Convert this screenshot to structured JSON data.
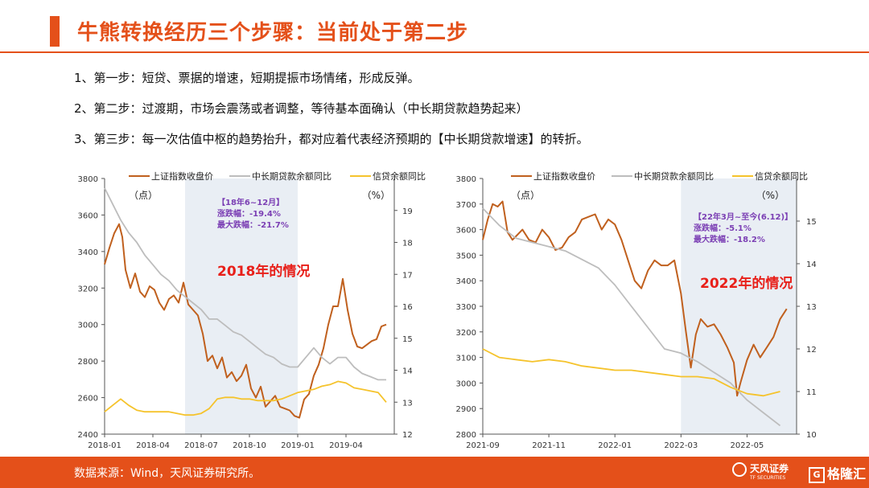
{
  "page": {
    "title": "牛熊转换经历三个步骤：当前处于第二步",
    "steps": [
      "1、第一步：短贷、票据的增速，短期提振市场情绪，形成反弹。",
      "2、第二步：过渡期，市场会震荡或者调整，等待基本面确认（中长期贷款趋势起来）",
      "3、第三步：每一次估值中枢的趋势抬升，都对应着代表经济预期的【中长期贷款增速】的转折。"
    ],
    "footer": "数据来源：Wind，天风证券研究所。",
    "logo_tianfeng": "天风证券",
    "logo_tianfeng_sub": "TF SECURITIES",
    "logo_gelonghui": "格隆汇",
    "colors": {
      "accent": "#e4501a",
      "index": "#c0601e",
      "mlt_loan": "#bdbdbd",
      "credit": "#f5c32c",
      "shade": "#e9eef4",
      "annot": "#7b3fb4",
      "callout": "#e8201a"
    }
  },
  "chart_data": [
    {
      "type": "line",
      "legend": [
        "上证指数收盘价",
        "中长期贷款余额同比",
        "信贷余额同比"
      ],
      "left_unit": "（点）",
      "right_unit": "（%）",
      "yleft_ticks": [
        "3800",
        "3600",
        "3400",
        "3200",
        "3000",
        "2800",
        "2600",
        "2400"
      ],
      "yleft_range": [
        2400,
        3800
      ],
      "yright_ticks": [
        "19",
        "18",
        "17",
        "16",
        "15",
        "14",
        "13",
        "12"
      ],
      "yright_range": [
        12,
        20
      ],
      "x_ticks": [
        "2018-01",
        "2018-04",
        "2018-07",
        "2018-10",
        "2019-01",
        "2019-04"
      ],
      "x_range": [
        0,
        18
      ],
      "x_tick_pos": [
        0,
        3,
        6,
        9,
        12,
        15
      ],
      "shade_range": [
        5,
        12
      ],
      "annotation": {
        "title": "【18年6~12月】",
        "line1": "涨跌幅：-19.4%",
        "line2": "最大跌幅：-21.7%"
      },
      "callout": "2018年的情况",
      "series": [
        {
          "name": "上证指数收盘价",
          "axis": "left",
          "x": [
            0,
            0.3,
            0.6,
            0.9,
            1.1,
            1.3,
            1.6,
            1.9,
            2.2,
            2.5,
            2.8,
            3.1,
            3.4,
            3.7,
            4.0,
            4.3,
            4.6,
            4.9,
            5.2,
            5.5,
            5.8,
            6.1,
            6.4,
            6.7,
            7.0,
            7.3,
            7.6,
            7.9,
            8.2,
            8.5,
            8.8,
            9.1,
            9.4,
            9.7,
            10.0,
            10.3,
            10.6,
            10.9,
            11.2,
            11.5,
            11.8,
            12.1,
            12.4,
            12.7,
            13.0,
            13.3,
            13.6,
            13.9,
            14.2,
            14.5,
            14.8,
            15.1,
            15.4,
            15.7,
            16.0,
            16.3,
            16.6,
            16.9,
            17.2,
            17.5
          ],
          "y": [
            3330,
            3420,
            3500,
            3550,
            3480,
            3300,
            3200,
            3280,
            3180,
            3150,
            3210,
            3190,
            3120,
            3080,
            3140,
            3160,
            3120,
            3230,
            3110,
            3080,
            3050,
            2950,
            2800,
            2830,
            2760,
            2820,
            2710,
            2740,
            2690,
            2720,
            2780,
            2650,
            2600,
            2660,
            2550,
            2580,
            2610,
            2550,
            2540,
            2530,
            2500,
            2490,
            2590,
            2620,
            2720,
            2780,
            2870,
            3000,
            3100,
            3100,
            3250,
            3080,
            2950,
            2880,
            2870,
            2890,
            2910,
            2920,
            2990,
            3000
          ]
        },
        {
          "name": "中长期贷款余额同比",
          "axis": "right",
          "x": [
            0,
            0.5,
            1,
            1.5,
            2,
            2.5,
            3,
            3.5,
            4,
            4.5,
            5,
            5.5,
            6,
            6.5,
            7,
            7.5,
            8,
            8.5,
            9,
            9.5,
            10,
            10.5,
            11,
            11.5,
            12,
            12.5,
            13,
            13.5,
            14,
            14.5,
            15,
            15.5,
            16,
            16.5,
            17,
            17.5
          ],
          "y": [
            19.7,
            19.2,
            18.7,
            18.3,
            18.0,
            17.6,
            17.3,
            17.0,
            16.8,
            16.5,
            16.3,
            16.1,
            15.9,
            15.6,
            15.6,
            15.4,
            15.2,
            15.1,
            14.9,
            14.7,
            14.5,
            14.4,
            14.2,
            14.1,
            14.1,
            14.4,
            14.7,
            14.4,
            14.2,
            14.4,
            14.4,
            14.1,
            13.9,
            13.8,
            13.7,
            13.7
          ]
        },
        {
          "name": "信贷余额同比",
          "axis": "right",
          "x": [
            0,
            0.5,
            1,
            1.5,
            2,
            2.5,
            3,
            3.5,
            4,
            4.5,
            5,
            5.5,
            6,
            6.5,
            7,
            7.5,
            8,
            8.5,
            9,
            9.5,
            10,
            10.5,
            11,
            11.5,
            12,
            12.5,
            13,
            13.5,
            14,
            14.5,
            15,
            15.5,
            16,
            16.5,
            17,
            17.5
          ],
          "y": [
            12.7,
            12.9,
            13.1,
            12.9,
            12.75,
            12.7,
            12.7,
            12.7,
            12.7,
            12.65,
            12.6,
            12.6,
            12.65,
            12.8,
            13.1,
            13.15,
            13.15,
            13.1,
            13.1,
            13.05,
            13.05,
            13.05,
            13.1,
            13.2,
            13.3,
            13.35,
            13.4,
            13.5,
            13.55,
            13.65,
            13.6,
            13.45,
            13.4,
            13.35,
            13.3,
            13.0
          ]
        }
      ]
    },
    {
      "type": "line",
      "legend": [
        "上证指数收盘价",
        "中长期贷款余额同比",
        "信贷余额同比"
      ],
      "left_unit": "（点）",
      "right_unit": "（%）",
      "yleft_ticks": [
        "3800",
        "3700",
        "3600",
        "3500",
        "3400",
        "3300",
        "3200",
        "3100",
        "3000",
        "2900",
        "2800"
      ],
      "yleft_range": [
        2800,
        3800
      ],
      "yright_ticks": [
        "15",
        "14",
        "13",
        "12",
        "11",
        "10"
      ],
      "yright_range": [
        10,
        16
      ],
      "x_ticks": [
        "2021-09",
        "2021-11",
        "2022-01",
        "2022-03",
        "2022-05"
      ],
      "x_range": [
        0,
        9.5
      ],
      "x_tick_pos": [
        0,
        2,
        4,
        6,
        8
      ],
      "shade_range": [
        6,
        9.5
      ],
      "annotation": {
        "title": "【22年3月~至今(6.12)】",
        "line1": "涨跌幅：-5.1%",
        "line2": "最大跌幅：-18.2%"
      },
      "callout": "2022年的情况",
      "series": [
        {
          "name": "上证指数收盘价",
          "axis": "left",
          "x": [
            0,
            0.15,
            0.3,
            0.45,
            0.6,
            0.75,
            0.9,
            1.05,
            1.2,
            1.4,
            1.6,
            1.8,
            2.0,
            2.2,
            2.4,
            2.6,
            2.8,
            3.0,
            3.2,
            3.4,
            3.6,
            3.8,
            4.0,
            4.2,
            4.4,
            4.6,
            4.8,
            5.0,
            5.2,
            5.4,
            5.6,
            5.8,
            6.0,
            6.15,
            6.3,
            6.45,
            6.6,
            6.8,
            7.0,
            7.2,
            7.4,
            7.6,
            7.7,
            7.8,
            8.0,
            8.2,
            8.4,
            8.6,
            8.8,
            9.0,
            9.2
          ],
          "y": [
            3560,
            3640,
            3700,
            3690,
            3710,
            3590,
            3560,
            3580,
            3600,
            3560,
            3550,
            3600,
            3570,
            3520,
            3530,
            3570,
            3590,
            3640,
            3650,
            3660,
            3600,
            3640,
            3620,
            3560,
            3480,
            3400,
            3370,
            3440,
            3480,
            3460,
            3460,
            3480,
            3350,
            3200,
            3060,
            3190,
            3250,
            3220,
            3230,
            3190,
            3140,
            3080,
            2950,
            3000,
            3090,
            3150,
            3100,
            3140,
            3180,
            3250,
            3290
          ]
        },
        {
          "name": "中长期贷款余额同比",
          "axis": "right",
          "x": [
            0,
            0.5,
            1,
            1.5,
            2,
            2.5,
            3,
            3.5,
            4,
            4.5,
            5,
            5.5,
            6,
            6.5,
            7,
            7.5,
            8,
            8.5,
            9
          ],
          "y": [
            15.3,
            14.9,
            14.6,
            14.5,
            14.4,
            14.3,
            14.1,
            13.9,
            13.5,
            13.0,
            12.5,
            12.0,
            11.9,
            11.7,
            11.45,
            11.2,
            10.8,
            10.5,
            10.2
          ]
        },
        {
          "name": "信贷余额同比",
          "axis": "right",
          "x": [
            0,
            0.5,
            1,
            1.5,
            2,
            2.5,
            3,
            3.5,
            4,
            4.5,
            5,
            5.5,
            6,
            6.5,
            7,
            7.5,
            8,
            8.5,
            9
          ],
          "y": [
            12.0,
            11.8,
            11.75,
            11.7,
            11.75,
            11.7,
            11.6,
            11.55,
            11.5,
            11.5,
            11.45,
            11.4,
            11.35,
            11.35,
            11.3,
            11.1,
            10.95,
            10.9,
            11.0
          ]
        }
      ]
    }
  ]
}
